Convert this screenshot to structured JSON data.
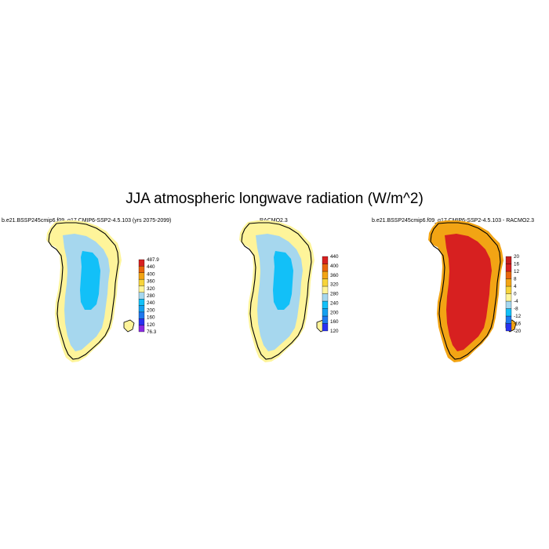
{
  "title": "JJA atmospheric longwave radiation (W/m^2)",
  "panels": [
    {
      "id": "model",
      "title": "b.e21.BSSP245cmip6.f09_g17.CMIP6-SSP2-4.5.103 (yrs 2075-2099)",
      "colors": [
        "#8a2be2",
        "#2a32f0",
        "#1e78ee",
        "#14a0f0",
        "#12c0f8",
        "#a6d7ee",
        "#fef49a",
        "#f7d43a",
        "#f2a414",
        "#e8650c",
        "#d72020"
      ],
      "colorbar_labels": [
        "487.9",
        "440",
        "400",
        "360",
        "320",
        "280",
        "240",
        "200",
        "160",
        "120",
        "76.3"
      ],
      "field": {
        "coast": "#fef49a",
        "margin": "#a6d7ee",
        "interior": "#12c0f8"
      }
    },
    {
      "id": "racmo",
      "title": "RACMO2.3",
      "colors": [
        "#2a32f0",
        "#1e78ee",
        "#14a0f0",
        "#12c0f8",
        "#a6d7ee",
        "#fef49a",
        "#f7d43a",
        "#f2a414",
        "#e8650c",
        "#d72020"
      ],
      "colorbar_labels": [
        "440",
        "400",
        "360",
        "320",
        "280",
        "240",
        "200",
        "160",
        "120"
      ],
      "field": {
        "coast": "#fef49a",
        "margin": "#a6d7ee",
        "interior": "#12c0f8"
      }
    },
    {
      "id": "diff",
      "title": "b.e21.BSSP245cmip6.f09_g17.CMIP6-SSP2-4.5.103 - RACMO2.3",
      "colors": [
        "#2a32f0",
        "#1e78ee",
        "#12c0f8",
        "#a6d7ee",
        "#fef49a",
        "#f7d43a",
        "#f2a414",
        "#e8650c",
        "#d72020",
        "#c81e1e"
      ],
      "colorbar_labels": [
        "20",
        "16",
        "12",
        "8",
        "4",
        "0",
        "-4",
        "-8",
        "-12",
        "-16",
        "-20"
      ],
      "field": {
        "coast": "#f2a414",
        "margin": "#d72020",
        "interior": "#d72020"
      }
    }
  ]
}
